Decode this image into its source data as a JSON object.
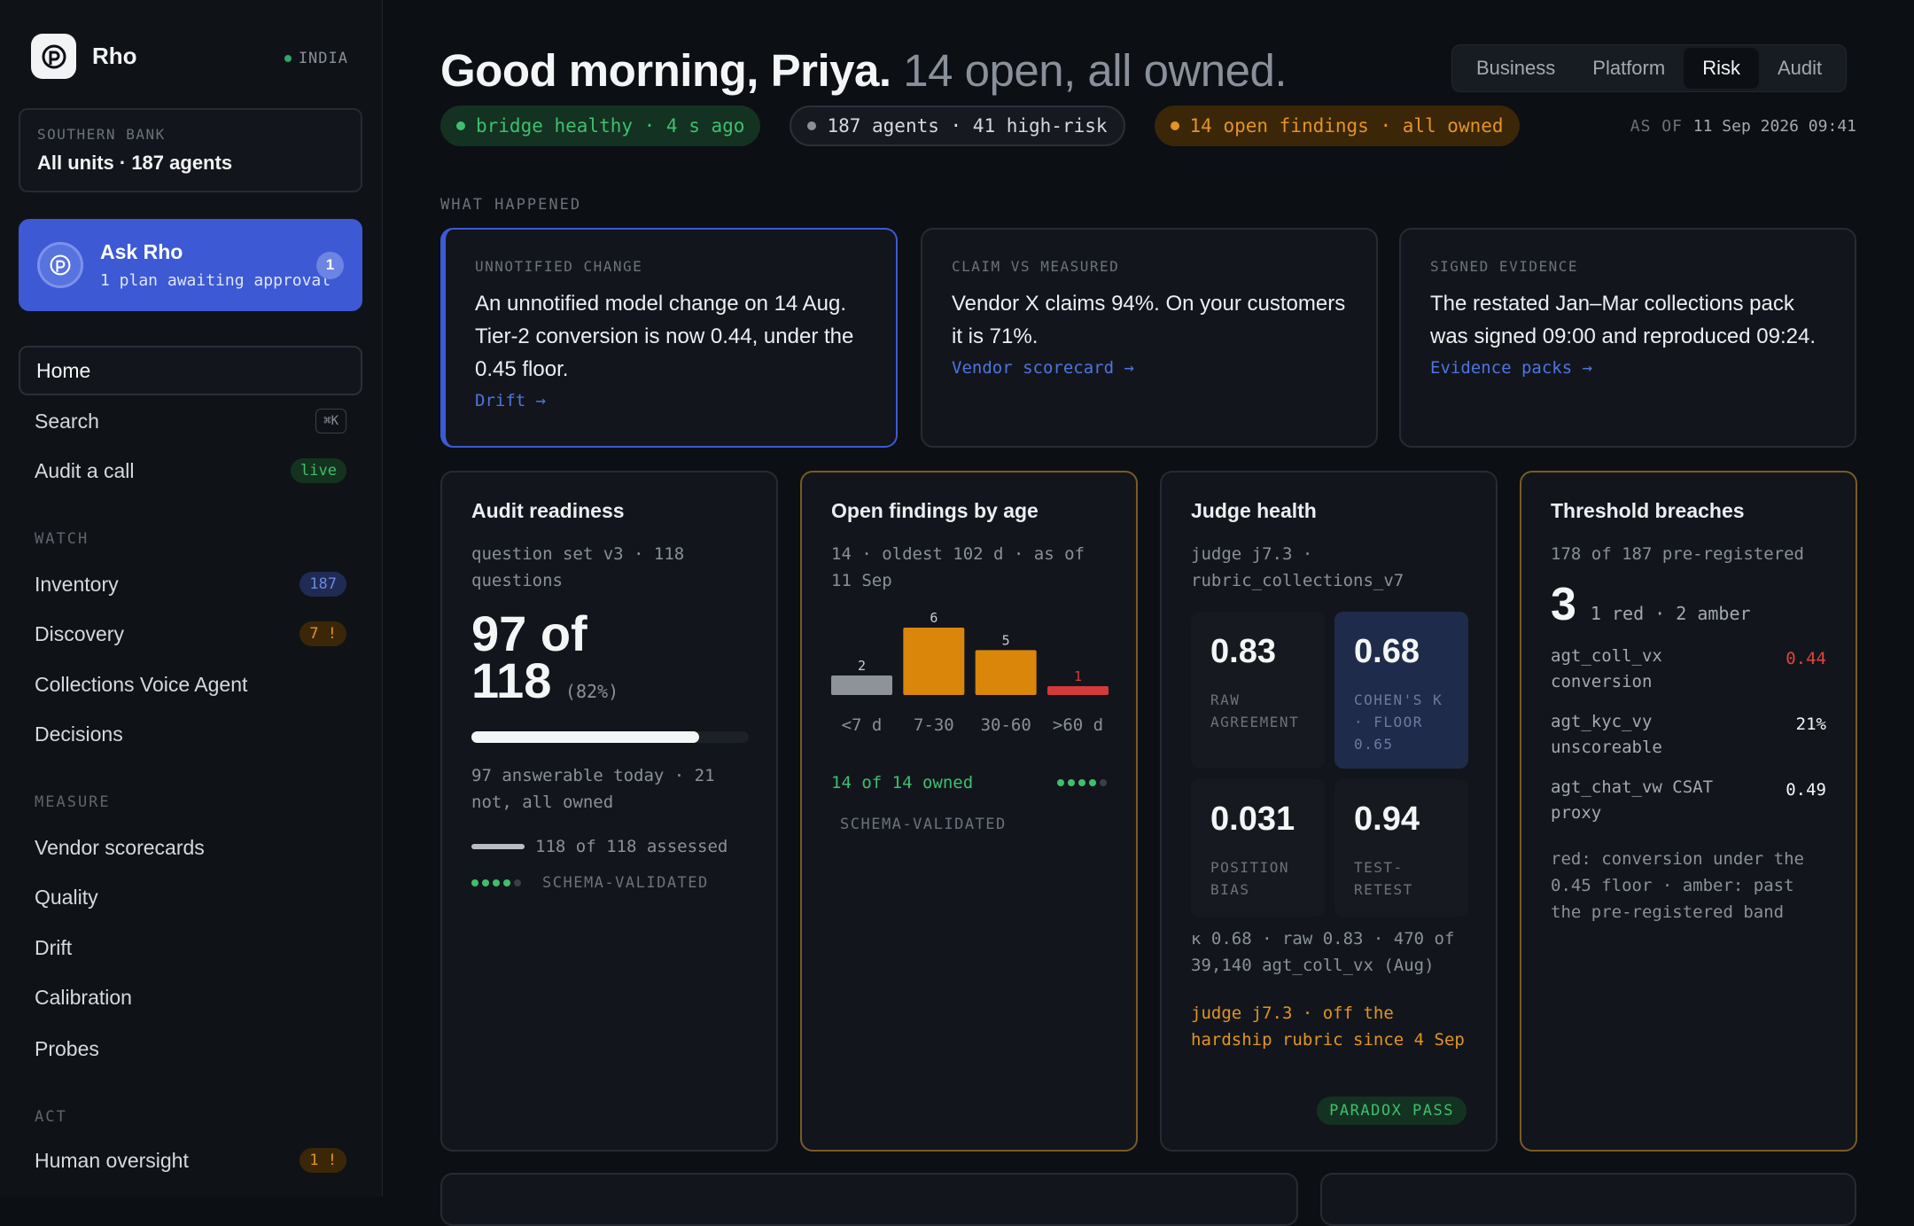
{
  "sidebar": {
    "brand": "Rho",
    "region": "INDIA",
    "scope_label": "SOUTHERN BANK",
    "scope_value": "All units · 187 agents",
    "ask": {
      "title": "Ask Rho",
      "subtitle": "1 plan awaiting approval",
      "badge": "1"
    },
    "nav_top": [
      {
        "label": "Home",
        "active": true
      },
      {
        "label": "Search",
        "kbd": "⌘K"
      },
      {
        "label": "Audit a call",
        "pill": "live"
      }
    ],
    "sections": [
      {
        "label": "WATCH",
        "items": [
          {
            "label": "Inventory",
            "badge": "187"
          },
          {
            "label": "Discovery",
            "badge": "7 !"
          },
          {
            "label": "Collections Voice Agent"
          },
          {
            "label": "Decisions"
          }
        ]
      },
      {
        "label": "MEASURE",
        "items": [
          {
            "label": "Vendor scorecards"
          },
          {
            "label": "Quality"
          },
          {
            "label": "Drift"
          },
          {
            "label": "Calibration"
          },
          {
            "label": "Probes"
          }
        ]
      },
      {
        "label": "ACT",
        "items": [
          {
            "label": "Human oversight",
            "badge": "1 !"
          }
        ]
      }
    ]
  },
  "header": {
    "greeting": "Good morning, Priya.",
    "summary": "14 open, all owned.",
    "views": [
      "Business",
      "Platform",
      "Risk",
      "Audit"
    ],
    "active_view": "Risk",
    "chips": {
      "bridge": "bridge healthy · 4 s ago",
      "agents": "187 agents · 41 high-risk",
      "findings": "14 open findings · all owned"
    },
    "asof_label": "AS OF",
    "asof_value": "11 Sep 2026 09:41"
  },
  "what_happened": {
    "label": "WHAT HAPPENED",
    "cards": [
      {
        "label": "UNNOTIFIED CHANGE",
        "body": "An unnotified model change on 14 Aug. Tier-2 conversion is now 0.44, under the 0.45 floor.",
        "link": "Drift →"
      },
      {
        "label": "CLAIM VS MEASURED",
        "body": "Vendor X claims 94%. On your customers it is 71%.",
        "link": "Vendor scorecard →"
      },
      {
        "label": "SIGNED EVIDENCE",
        "body": "The restated Jan–Mar collections pack was signed 09:00 and reproduced 09:24.",
        "link": "Evidence packs →"
      }
    ]
  },
  "audit": {
    "title": "Audit readiness",
    "sub": "question set v3 · 118 questions",
    "big_a": "97 of",
    "big_b": "118",
    "pct": "(82%)",
    "progress": 0.82,
    "note": "97 answerable today · 21 not, all owned",
    "assessed": "118 of 118 assessed",
    "assessed_fraction": 1.0,
    "schema": "SCHEMA-VALIDATED"
  },
  "findings": {
    "title": "Open findings by age",
    "sub": "14 · oldest 102 d · as of 11 Sep",
    "owned": "14 of 14 owned",
    "schema": "SCHEMA-VALIDATED"
  },
  "chart_data": {
    "type": "bar",
    "categories": [
      "<7 d",
      "7-30",
      "30-60",
      ">60 d"
    ],
    "values": [
      2,
      6,
      5,
      1
    ],
    "colors": [
      "#8e9299",
      "#d9860a",
      "#d9860a",
      "#d33a3a"
    ]
  },
  "judge": {
    "title": "Judge health",
    "sub": "judge j7.3 · rubric_collections_v7",
    "cells": [
      {
        "value": "0.83",
        "label": "RAW AGREEMENT"
      },
      {
        "value": "0.68",
        "label": "COHEN'S K · FLOOR 0.65"
      },
      {
        "value": "0.031",
        "label": "POSITION BIAS"
      },
      {
        "value": "0.94",
        "label": "TEST-RETEST"
      }
    ],
    "note": "κ 0.68 · raw 0.83 · 470 of 39,140 agt_coll_vx (Aug)",
    "warning": "judge j7.3 · off the hardship rubric since 4 Sep",
    "pass": "PARADOX PASS"
  },
  "breaches": {
    "title": "Threshold breaches",
    "sub": "178 of 187 pre-registered",
    "count": "3",
    "count_note": "1 red · 2 amber",
    "rows": [
      {
        "name": "agt_coll_vx conversion",
        "value": "0.44",
        "color": "#e0443e"
      },
      {
        "name": "agt_kyc_vy unscoreable",
        "value": "21%",
        "color": "#f4f5f7"
      },
      {
        "name": "agt_chat_vw CSAT proxy",
        "value": "0.49",
        "color": "#f4f5f7"
      }
    ],
    "legend": "red: conversion under the 0.45 floor · amber: past the pre-registered band"
  }
}
